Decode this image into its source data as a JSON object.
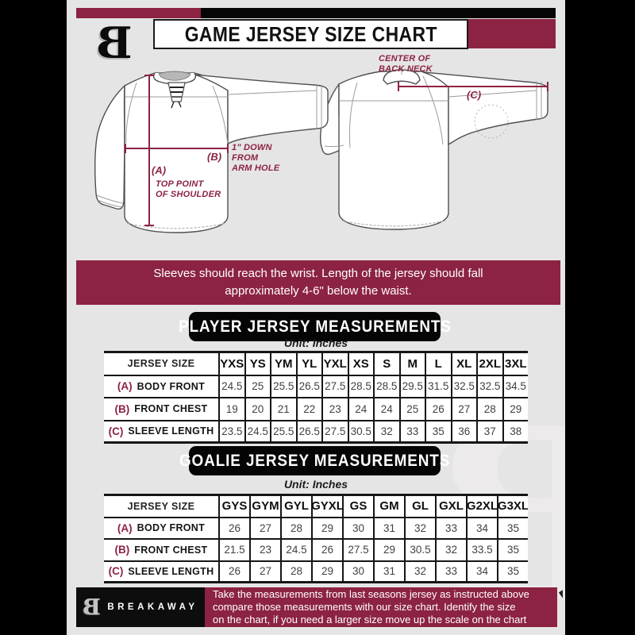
{
  "colors": {
    "maroon": "#8c2342",
    "black": "#050505",
    "background": "#e6e5e5",
    "table_line": "#161616",
    "collar_gray": "#b7b7b7"
  },
  "header": {
    "title": "GAME JERSEY SIZE CHART",
    "logo_letter": "B"
  },
  "diagram": {
    "front": {
      "a_key": "(A)",
      "a_note_lines": [
        "TOP POINT",
        "OF SHOULDER"
      ],
      "b_key": "(B)",
      "b_note_lines": [
        "1\" DOWN",
        "FROM",
        "ARM HOLE"
      ]
    },
    "back": {
      "c_key": "(C)",
      "c_note_lines": [
        "CENTER OF",
        "BACK NECK"
      ]
    }
  },
  "notice": {
    "lines": [
      "Sleeves should reach the wrist. Length of the jersey should fall",
      "approximately 4-6\" below the waist."
    ]
  },
  "sections": {
    "player": {
      "title": "PLAYER JERSEY MEASUREMENTS",
      "unit": "Unit: Inches"
    },
    "goalie": {
      "title": "GOALIE JERSEY MEASUREMENTS",
      "unit": "Unit: Inches"
    }
  },
  "player_table": {
    "corner_label": "JERSEY SIZE",
    "sizes": [
      "YXS",
      "YS",
      "YM",
      "YL",
      "YXL",
      "XS",
      "S",
      "M",
      "L",
      "XL",
      "2XL",
      "3XL"
    ],
    "rows": [
      {
        "key": "(A)",
        "label": "BODY FRONT",
        "values": [
          "24.5",
          "25",
          "25.5",
          "26.5",
          "27.5",
          "28.5",
          "28.5",
          "29.5",
          "31.5",
          "32.5",
          "32.5",
          "34.5"
        ]
      },
      {
        "key": "(B)",
        "label": "FRONT CHEST",
        "values": [
          "19",
          "20",
          "21",
          "22",
          "23",
          "24",
          "24",
          "25",
          "26",
          "27",
          "28",
          "29"
        ]
      },
      {
        "key": "(C)",
        "label": "SLEEVE LENGTH",
        "values": [
          "23.5",
          "24.5",
          "25.5",
          "26.5",
          "27.5",
          "30.5",
          "32",
          "33",
          "35",
          "36",
          "37",
          "38"
        ]
      }
    ]
  },
  "goalie_table": {
    "corner_label": "JERSEY SIZE",
    "sizes": [
      "GYS",
      "GYM",
      "GYL",
      "GYXL",
      "GS",
      "GM",
      "GL",
      "GXL",
      "G2XL",
      "G3XL"
    ],
    "rows": [
      {
        "key": "(A)",
        "label": "BODY FRONT",
        "values": [
          "26",
          "27",
          "28",
          "29",
          "30",
          "31",
          "32",
          "33",
          "34",
          "35"
        ]
      },
      {
        "key": "(B)",
        "label": "FRONT CHEST",
        "values": [
          "21.5",
          "23",
          "24.5",
          "26",
          "27.5",
          "29",
          "30.5",
          "32",
          "33.5",
          "35"
        ]
      },
      {
        "key": "(C)",
        "label": "SLEEVE LENGTH",
        "values": [
          "26",
          "27",
          "28",
          "29",
          "30",
          "31",
          "32",
          "33",
          "34",
          "35"
        ]
      }
    ]
  },
  "footer": {
    "logo_letter": "B",
    "brand": "BREAKAWAY",
    "lines": [
      "Take the measurements from last seasons jersey as instructed above",
      "compare those measurements with our size chart. Identify the size",
      "on the chart, if you need a larger size move up the scale on the chart"
    ]
  },
  "watermark_letter": "B"
}
